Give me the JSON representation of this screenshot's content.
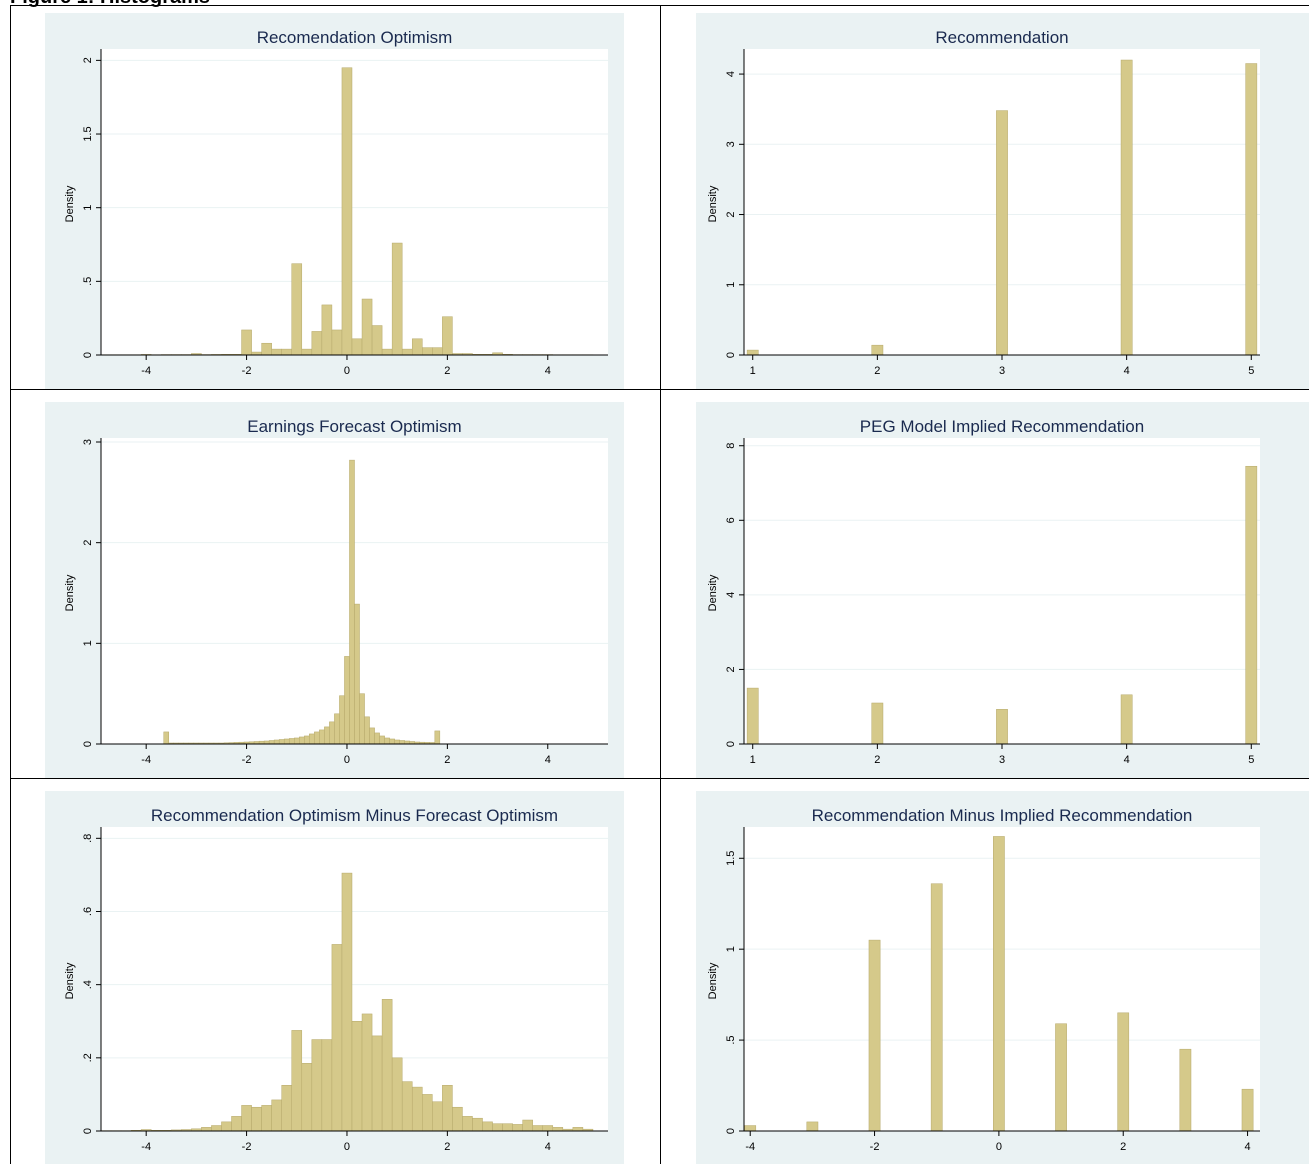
{
  "heading": "Figure 1: Histograms",
  "colors": {
    "panel_bg": "#eaf2f3",
    "plot_bg": "#ffffff",
    "bar": "#d5c98a",
    "bar_edge": "#b5a86a",
    "title": "#1a2a4f",
    "grid": "#eaf2f3"
  },
  "chart_data": [
    {
      "type": "bar",
      "title": "Recomendation Optimism",
      "ylabel": "Density",
      "xlim": [
        -4.9,
        5.2
      ],
      "ylim": [
        0,
        2.05
      ],
      "xticks": [
        -4,
        -2,
        0,
        2,
        4
      ],
      "xtick_labels": [
        "-4",
        "-2",
        "0",
        "2",
        "4"
      ],
      "yticks": [
        0,
        0.5,
        1,
        1.5,
        2
      ],
      "ytick_labels": [
        "0",
        ".5",
        "1",
        "1.5",
        "2"
      ],
      "bin_width": 0.2,
      "x": [
        -4.8,
        -4.6,
        -4.4,
        -4.2,
        -4.0,
        -3.8,
        -3.6,
        -3.4,
        -3.2,
        -3.0,
        -2.8,
        -2.6,
        -2.4,
        -2.2,
        -2.0,
        -1.8,
        -1.6,
        -1.4,
        -1.2,
        -1.0,
        -0.8,
        -0.6,
        -0.4,
        -0.2,
        0.0,
        0.2,
        0.4,
        0.6,
        0.8,
        1.0,
        1.2,
        1.4,
        1.6,
        1.8,
        2.0,
        2.2,
        2.4,
        2.6,
        2.8,
        3.0,
        3.2,
        3.4,
        3.6,
        3.8,
        4.0,
        4.2,
        4.4,
        4.6,
        4.8
      ],
      "values": [
        0.002,
        0.002,
        0.002,
        0.002,
        0.004,
        0.002,
        0.003,
        0.003,
        0.003,
        0.01,
        0.003,
        0.004,
        0.005,
        0.005,
        0.17,
        0.02,
        0.08,
        0.04,
        0.04,
        0.62,
        0.04,
        0.16,
        0.34,
        0.17,
        1.95,
        0.11,
        0.38,
        0.2,
        0.04,
        0.76,
        0.04,
        0.11,
        0.05,
        0.05,
        0.26,
        0.01,
        0.01,
        0.005,
        0.005,
        0.015,
        0.005,
        0.003,
        0.003,
        0.003,
        0.003,
        0.002,
        0.002,
        0.002,
        0.002
      ]
    },
    {
      "type": "bar",
      "title": "Recommendation",
      "ylabel": "Density",
      "xlim": [
        0.93,
        5.07
      ],
      "ylim": [
        0,
        4.3
      ],
      "xticks": [
        1,
        2,
        3,
        4,
        5
      ],
      "xtick_labels": [
        "1",
        "2",
        "3",
        "4",
        "5"
      ],
      "yticks": [
        0,
        1,
        2,
        3,
        4
      ],
      "ytick_labels": [
        "0",
        "1",
        "2",
        "3",
        "4"
      ],
      "bin_width": 0.09,
      "x": [
        1,
        2,
        3,
        4,
        5
      ],
      "values": [
        0.07,
        0.14,
        3.48,
        4.2,
        4.15
      ]
    },
    {
      "type": "bar",
      "title": "Earnings Forecast Optimism",
      "ylabel": "Density",
      "xlim": [
        -4.9,
        5.2
      ],
      "ylim": [
        0,
        3.0
      ],
      "xticks": [
        -4,
        -2,
        0,
        2,
        4
      ],
      "xtick_labels": [
        "-4",
        "-2",
        "0",
        "2",
        "4"
      ],
      "yticks": [
        0,
        1,
        2,
        3
      ],
      "ytick_labels": [
        "0",
        "1",
        "2",
        "3"
      ],
      "bin_width": 0.1,
      "x": [
        -3.6,
        -3.5,
        -3.4,
        -3.3,
        -3.2,
        -3.1,
        -3.0,
        -2.9,
        -2.8,
        -2.7,
        -2.6,
        -2.5,
        -2.4,
        -2.3,
        -2.2,
        -2.1,
        -2.0,
        -1.9,
        -1.8,
        -1.7,
        -1.6,
        -1.5,
        -1.4,
        -1.3,
        -1.2,
        -1.1,
        -1.0,
        -0.9,
        -0.8,
        -0.7,
        -0.6,
        -0.5,
        -0.4,
        -0.3,
        -0.2,
        -0.1,
        0.0,
        0.1,
        0.2,
        0.3,
        0.4,
        0.5,
        0.6,
        0.7,
        0.8,
        0.9,
        1.0,
        1.1,
        1.2,
        1.3,
        1.4,
        1.5,
        1.6,
        1.7,
        1.8
      ],
      "values": [
        0.12,
        0.01,
        0.01,
        0.01,
        0.01,
        0.01,
        0.01,
        0.01,
        0.01,
        0.01,
        0.01,
        0.01,
        0.012,
        0.014,
        0.016,
        0.018,
        0.02,
        0.022,
        0.025,
        0.028,
        0.03,
        0.035,
        0.04,
        0.045,
        0.05,
        0.055,
        0.06,
        0.07,
        0.08,
        0.1,
        0.12,
        0.14,
        0.17,
        0.22,
        0.3,
        0.48,
        0.87,
        2.82,
        1.39,
        0.5,
        0.27,
        0.16,
        0.11,
        0.08,
        0.06,
        0.05,
        0.04,
        0.035,
        0.03,
        0.025,
        0.02,
        0.018,
        0.016,
        0.015,
        0.13
      ]
    },
    {
      "type": "bar",
      "title": "PEG Model Implied Recommendation",
      "ylabel": "Density",
      "xlim": [
        0.93,
        5.07
      ],
      "ylim": [
        0,
        8.1
      ],
      "xticks": [
        1,
        2,
        3,
        4,
        5
      ],
      "xtick_labels": [
        "1",
        "2",
        "3",
        "4",
        "5"
      ],
      "yticks": [
        0,
        2,
        4,
        6,
        8
      ],
      "ytick_labels": [
        "0",
        "2",
        "4",
        "6",
        "8"
      ],
      "bin_width": 0.09,
      "x": [
        1,
        2,
        3,
        4,
        5
      ],
      "values": [
        1.5,
        1.1,
        0.93,
        1.32,
        7.45
      ]
    },
    {
      "type": "bar",
      "title": "Recommendation Optimism Minus Forecast Optimism",
      "ylabel": "Density",
      "xlim": [
        -4.9,
        5.2
      ],
      "ylim": [
        0,
        0.82
      ],
      "xticks": [
        -4,
        -2,
        0,
        2,
        4
      ],
      "xtick_labels": [
        "-4",
        "-2",
        "0",
        "2",
        "4"
      ],
      "yticks": [
        0,
        0.2,
        0.4,
        0.6,
        0.8
      ],
      "ytick_labels": [
        "0",
        ".2",
        ".4",
        ".6",
        ".8"
      ],
      "bin_width": 0.2,
      "x": [
        -4.8,
        -4.6,
        -4.4,
        -4.2,
        -4.0,
        -3.8,
        -3.6,
        -3.4,
        -3.2,
        -3.0,
        -2.8,
        -2.6,
        -2.4,
        -2.2,
        -2.0,
        -1.8,
        -1.6,
        -1.4,
        -1.2,
        -1.0,
        -0.8,
        -0.6,
        -0.4,
        -0.2,
        0.0,
        0.2,
        0.4,
        0.6,
        0.8,
        1.0,
        1.2,
        1.4,
        1.6,
        1.8,
        2.0,
        2.2,
        2.4,
        2.6,
        2.8,
        3.0,
        3.2,
        3.4,
        3.6,
        3.8,
        4.0,
        4.2,
        4.4,
        4.6,
        4.8
      ],
      "values": [
        0.001,
        0.001,
        0.001,
        0.002,
        0.004,
        0.002,
        0.002,
        0.003,
        0.004,
        0.006,
        0.01,
        0.015,
        0.025,
        0.04,
        0.07,
        0.065,
        0.07,
        0.085,
        0.125,
        0.275,
        0.185,
        0.25,
        0.25,
        0.51,
        0.705,
        0.3,
        0.32,
        0.26,
        0.36,
        0.2,
        0.135,
        0.12,
        0.1,
        0.08,
        0.125,
        0.065,
        0.04,
        0.035,
        0.025,
        0.02,
        0.02,
        0.018,
        0.03,
        0.015,
        0.015,
        0.01,
        0.005,
        0.01,
        0.005
      ]
    },
    {
      "type": "bar",
      "title": "Recommendation Minus Implied Recommendation",
      "ylabel": "Density",
      "xlim": [
        -4.1,
        4.2
      ],
      "ylim": [
        0,
        1.65
      ],
      "xticks": [
        -4,
        -2,
        0,
        2,
        4
      ],
      "xtick_labels": [
        "-4",
        "-2",
        "0",
        "2",
        "4"
      ],
      "yticks": [
        0,
        0.5,
        1,
        1.5
      ],
      "ytick_labels": [
        "0",
        ".5",
        "1",
        "1.5"
      ],
      "bin_width": 0.18,
      "x": [
        -4,
        -3,
        -2,
        -1,
        0,
        1,
        2,
        3,
        4
      ],
      "values": [
        0.03,
        0.05,
        1.05,
        1.36,
        1.62,
        0.59,
        0.65,
        0.45,
        0.23
      ]
    }
  ]
}
